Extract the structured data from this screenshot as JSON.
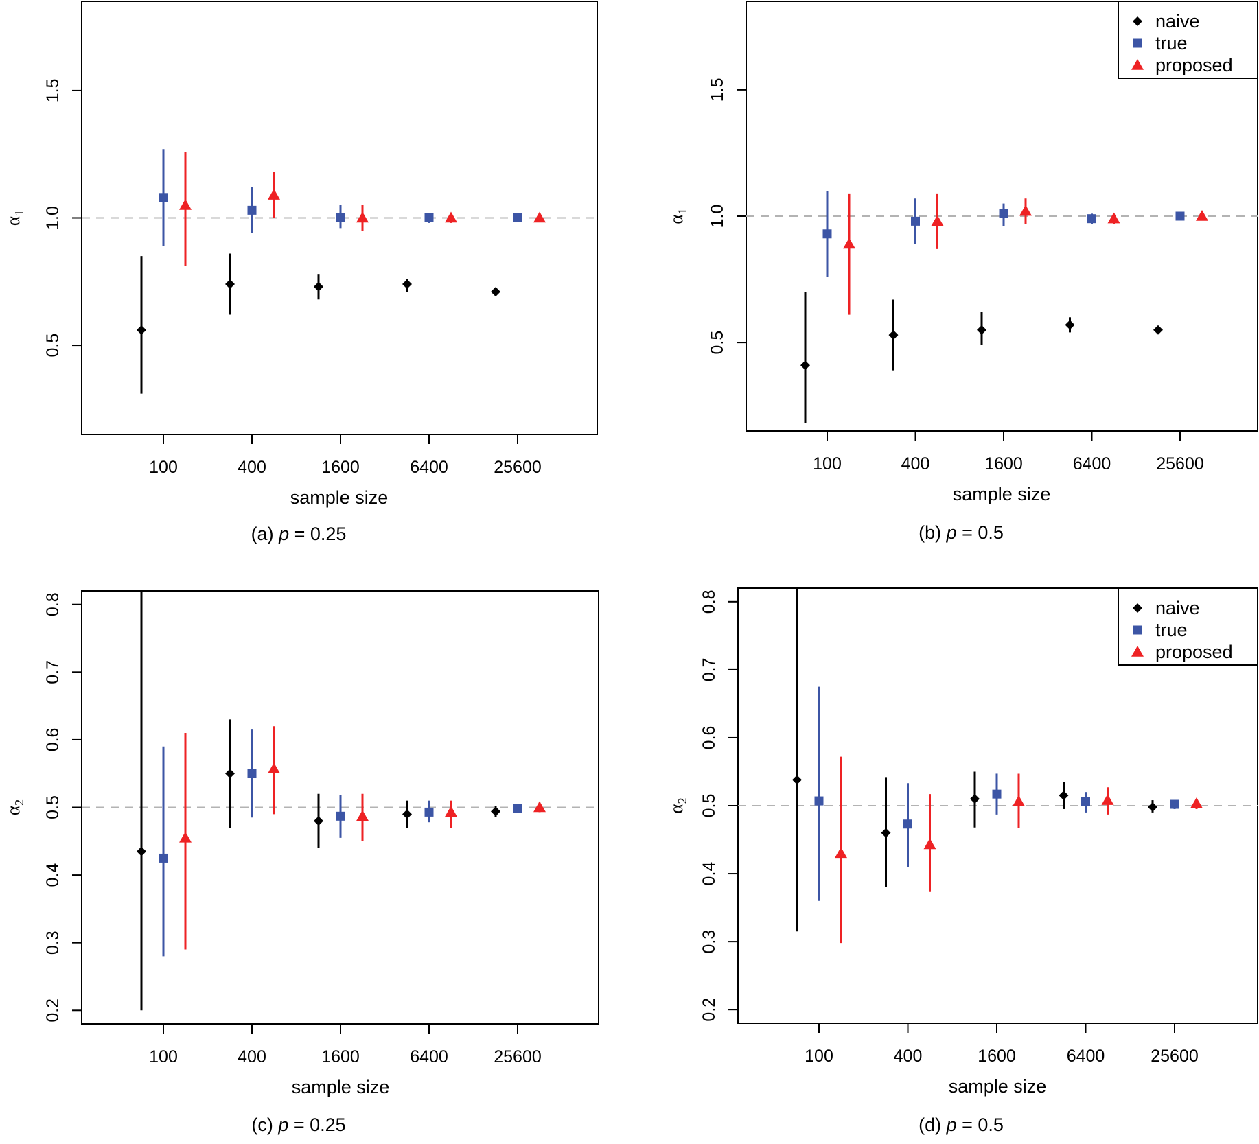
{
  "colors": {
    "naive": "#000000",
    "true": "#3c55a5",
    "proposed": "#ee2224",
    "reference": "#b3b3b3"
  },
  "chart_data": [
    {
      "type": "scatter",
      "panel": "a",
      "caption": "(a) ",
      "caption_var": "p",
      "caption_rest": " = 0.25",
      "xlabel": "sample size",
      "ylabel": "α",
      "ylabel_sub": "1",
      "categories": [
        "100",
        "400",
        "1600",
        "6400",
        "25600"
      ],
      "ylim": [
        0.15,
        1.85
      ],
      "yticks": [
        0.5,
        1.0,
        1.5
      ],
      "ytick_labels": [
        "0.5",
        "1.0",
        "1.5"
      ],
      "reference": 1.0,
      "legend": null,
      "series": [
        {
          "name": "naive",
          "marker": "diamond",
          "offset": -1,
          "points": [
            {
              "x": "100",
              "y": 0.56,
              "low": 0.31,
              "high": 0.85
            },
            {
              "x": "400",
              "y": 0.74,
              "low": 0.62,
              "high": 0.86
            },
            {
              "x": "1600",
              "y": 0.73,
              "low": 0.68,
              "high": 0.78
            },
            {
              "x": "6400",
              "y": 0.74,
              "low": 0.71,
              "high": 0.76
            },
            {
              "x": "25600",
              "y": 0.71,
              "low": 0.7,
              "high": 0.72
            }
          ]
        },
        {
          "name": "true",
          "marker": "square",
          "offset": 0,
          "points": [
            {
              "x": "100",
              "y": 1.08,
              "low": 0.89,
              "high": 1.27
            },
            {
              "x": "400",
              "y": 1.03,
              "low": 0.94,
              "high": 1.12
            },
            {
              "x": "1600",
              "y": 1.0,
              "low": 0.96,
              "high": 1.05
            },
            {
              "x": "6400",
              "y": 1.0,
              "low": 0.98,
              "high": 1.02
            },
            {
              "x": "25600",
              "y": 1.0,
              "low": 0.99,
              "high": 1.01
            }
          ]
        },
        {
          "name": "proposed",
          "marker": "triangle",
          "offset": 1,
          "points": [
            {
              "x": "100",
              "y": 1.05,
              "low": 0.81,
              "high": 1.26
            },
            {
              "x": "400",
              "y": 1.09,
              "low": 1.0,
              "high": 1.18
            },
            {
              "x": "1600",
              "y": 1.0,
              "low": 0.95,
              "high": 1.05
            },
            {
              "x": "6400",
              "y": 1.0,
              "low": 0.98,
              "high": 1.02
            },
            {
              "x": "25600",
              "y": 1.0,
              "low": 0.99,
              "high": 1.01
            }
          ]
        }
      ]
    },
    {
      "type": "scatter",
      "panel": "b",
      "caption": "(b) ",
      "caption_var": "p",
      "caption_rest": " = 0.5",
      "xlabel": "sample size",
      "ylabel": "α",
      "ylabel_sub": "1",
      "categories": [
        "100",
        "400",
        "1600",
        "6400",
        "25600"
      ],
      "ylim": [
        0.15,
        1.85
      ],
      "yticks": [
        0.5,
        1.0,
        1.5
      ],
      "ytick_labels": [
        "0.5",
        "1.0",
        "1.5"
      ],
      "reference": 1.0,
      "legend": {
        "position": "top-right",
        "entries": [
          "naive",
          "true",
          "proposed"
        ]
      },
      "series": [
        {
          "name": "naive",
          "marker": "diamond",
          "offset": -1,
          "points": [
            {
              "x": "100",
              "y": 0.41,
              "low": 0.18,
              "high": 0.7
            },
            {
              "x": "400",
              "y": 0.53,
              "low": 0.39,
              "high": 0.67
            },
            {
              "x": "1600",
              "y": 0.55,
              "low": 0.49,
              "high": 0.62
            },
            {
              "x": "6400",
              "y": 0.57,
              "low": 0.54,
              "high": 0.6
            },
            {
              "x": "25600",
              "y": 0.55,
              "low": 0.54,
              "high": 0.56
            }
          ]
        },
        {
          "name": "true",
          "marker": "square",
          "offset": 0,
          "points": [
            {
              "x": "100",
              "y": 0.93,
              "low": 0.76,
              "high": 1.1
            },
            {
              "x": "400",
              "y": 0.98,
              "low": 0.89,
              "high": 1.07
            },
            {
              "x": "1600",
              "y": 1.01,
              "low": 0.96,
              "high": 1.05
            },
            {
              "x": "6400",
              "y": 0.99,
              "low": 0.97,
              "high": 1.01
            },
            {
              "x": "25600",
              "y": 1.0,
              "low": 0.99,
              "high": 1.01
            }
          ]
        },
        {
          "name": "proposed",
          "marker": "triangle",
          "offset": 1,
          "points": [
            {
              "x": "100",
              "y": 0.89,
              "low": 0.61,
              "high": 1.09
            },
            {
              "x": "400",
              "y": 0.98,
              "low": 0.87,
              "high": 1.09
            },
            {
              "x": "1600",
              "y": 1.02,
              "low": 0.97,
              "high": 1.07
            },
            {
              "x": "6400",
              "y": 0.99,
              "low": 0.97,
              "high": 1.01
            },
            {
              "x": "25600",
              "y": 1.0,
              "low": 0.99,
              "high": 1.01
            }
          ]
        }
      ]
    },
    {
      "type": "scatter",
      "panel": "c",
      "caption": "(c) ",
      "caption_var": "p",
      "caption_rest": " = 0.25",
      "xlabel": "sample size",
      "ylabel": "α",
      "ylabel_sub": "2",
      "categories": [
        "100",
        "400",
        "1600",
        "6400",
        "25600"
      ],
      "ylim": [
        0.18,
        0.82
      ],
      "yticks": [
        0.2,
        0.3,
        0.4,
        0.5,
        0.6,
        0.7,
        0.8
      ],
      "ytick_labels": [
        "0.2",
        "0.3",
        "0.4",
        "0.5",
        "0.6",
        "0.7",
        "0.8"
      ],
      "reference": 0.5,
      "legend": null,
      "series": [
        {
          "name": "naive",
          "marker": "diamond",
          "offset": -1,
          "points": [
            {
              "x": "100",
              "y": 0.435,
              "low": 0.2,
              "high": 0.82
            },
            {
              "x": "400",
              "y": 0.55,
              "low": 0.47,
              "high": 0.63
            },
            {
              "x": "1600",
              "y": 0.48,
              "low": 0.44,
              "high": 0.52
            },
            {
              "x": "6400",
              "y": 0.49,
              "low": 0.47,
              "high": 0.51
            },
            {
              "x": "25600",
              "y": 0.494,
              "low": 0.486,
              "high": 0.502
            }
          ]
        },
        {
          "name": "true",
          "marker": "square",
          "offset": 0,
          "points": [
            {
              "x": "100",
              "y": 0.425,
              "low": 0.28,
              "high": 0.59
            },
            {
              "x": "400",
              "y": 0.55,
              "low": 0.485,
              "high": 0.615
            },
            {
              "x": "1600",
              "y": 0.487,
              "low": 0.455,
              "high": 0.518
            },
            {
              "x": "6400",
              "y": 0.493,
              "low": 0.478,
              "high": 0.51
            },
            {
              "x": "25600",
              "y": 0.498,
              "low": 0.492,
              "high": 0.505
            }
          ]
        },
        {
          "name": "proposed",
          "marker": "triangle",
          "offset": 1,
          "points": [
            {
              "x": "100",
              "y": 0.455,
              "low": 0.29,
              "high": 0.61
            },
            {
              "x": "400",
              "y": 0.557,
              "low": 0.49,
              "high": 0.62
            },
            {
              "x": "1600",
              "y": 0.487,
              "low": 0.45,
              "high": 0.52
            },
            {
              "x": "6400",
              "y": 0.493,
              "low": 0.47,
              "high": 0.51
            },
            {
              "x": "25600",
              "y": 0.5,
              "low": 0.493,
              "high": 0.507
            }
          ]
        }
      ]
    },
    {
      "type": "scatter",
      "panel": "d",
      "caption": "(d) ",
      "caption_var": "p",
      "caption_rest": " = 0.5",
      "xlabel": "sample size",
      "ylabel": "α",
      "ylabel_sub": "2",
      "categories": [
        "100",
        "400",
        "1600",
        "6400",
        "25600"
      ],
      "ylim": [
        0.18,
        0.82
      ],
      "yticks": [
        0.2,
        0.3,
        0.4,
        0.5,
        0.6,
        0.7,
        0.8
      ],
      "ytick_labels": [
        "0.2",
        "0.3",
        "0.4",
        "0.5",
        "0.6",
        "0.7",
        "0.8"
      ],
      "reference": 0.5,
      "legend": {
        "position": "top-right",
        "entries": [
          "naive",
          "true",
          "proposed"
        ]
      },
      "series": [
        {
          "name": "naive",
          "marker": "diamond",
          "offset": -1,
          "points": [
            {
              "x": "100",
              "y": 0.538,
              "low": 0.315,
              "high": 0.82
            },
            {
              "x": "400",
              "y": 0.46,
              "low": 0.38,
              "high": 0.542
            },
            {
              "x": "1600",
              "y": 0.51,
              "low": 0.468,
              "high": 0.55
            },
            {
              "x": "6400",
              "y": 0.515,
              "low": 0.495,
              "high": 0.535
            },
            {
              "x": "25600",
              "y": 0.498,
              "low": 0.49,
              "high": 0.508
            }
          ]
        },
        {
          "name": "true",
          "marker": "square",
          "offset": 0,
          "points": [
            {
              "x": "100",
              "y": 0.507,
              "low": 0.36,
              "high": 0.675
            },
            {
              "x": "400",
              "y": 0.473,
              "low": 0.41,
              "high": 0.533
            },
            {
              "x": "1600",
              "y": 0.517,
              "low": 0.487,
              "high": 0.547
            },
            {
              "x": "6400",
              "y": 0.506,
              "low": 0.49,
              "high": 0.52
            },
            {
              "x": "25600",
              "y": 0.502,
              "low": 0.495,
              "high": 0.508
            }
          ]
        },
        {
          "name": "proposed",
          "marker": "triangle",
          "offset": 1,
          "points": [
            {
              "x": "100",
              "y": 0.43,
              "low": 0.298,
              "high": 0.572
            },
            {
              "x": "400",
              "y": 0.443,
              "low": 0.373,
              "high": 0.517
            },
            {
              "x": "1600",
              "y": 0.506,
              "low": 0.467,
              "high": 0.547
            },
            {
              "x": "6400",
              "y": 0.508,
              "low": 0.487,
              "high": 0.527
            },
            {
              "x": "25600",
              "y": 0.503,
              "low": 0.495,
              "high": 0.51
            }
          ]
        }
      ]
    }
  ]
}
